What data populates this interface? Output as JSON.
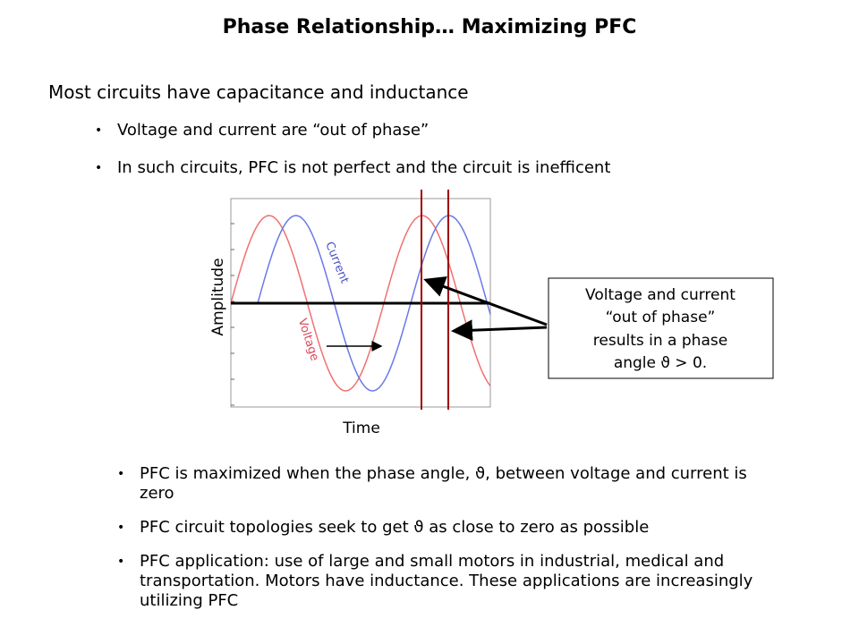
{
  "header": {
    "title": "Phase Relationship… Maximizing PFC"
  },
  "intro": {
    "heading": "Most circuits have capacitance and inductance",
    "bullets": [
      "Voltage and current are “out of phase”",
      "In such circuits, PFC is not perfect and the circuit is inefficent"
    ]
  },
  "figure": {
    "y_label": "Amplitude",
    "x_label": "Time",
    "current_label": "Current",
    "voltage_label": "Voltage",
    "callout": [
      "Voltage and current",
      "“out of phase”",
      "results in a phase",
      "angle ϑ > 0."
    ]
  },
  "conclusions": {
    "bullets": [
      "PFC is maximized when the phase angle, ϑ, between voltage and current is zero",
      "PFC circuit topologies seek to get ϑ as close to zero as possible",
      "PFC application: use of large and small motors in industrial, medical and transportation. Motors have inductance. These applications are increasingly utilizing PFC"
    ]
  }
}
